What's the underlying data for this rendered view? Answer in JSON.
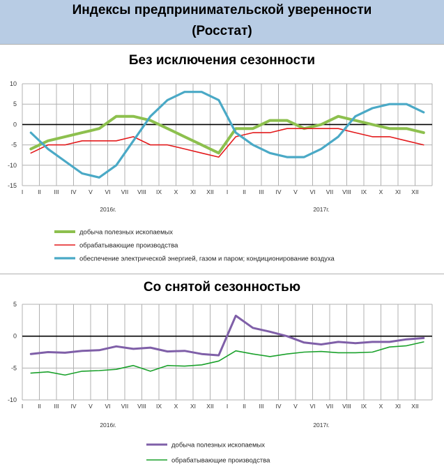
{
  "header": {
    "title_line1": "Индексы предпринимательской уверенности",
    "title_line2": "(Росстат)"
  },
  "section1": {
    "title": "Без исключения сезонности"
  },
  "section2": {
    "title": "Со снятой сезонностью"
  },
  "colors": {
    "mining": "#8dc04e",
    "manufacturing": "#e31a1c",
    "energy": "#4aa9c6",
    "mining_sa": "#7f5fa8",
    "manufacturing_sa": "#1aa12b",
    "grid": "#b0b0b0",
    "zero_line": "#000000"
  },
  "chart_data": [
    {
      "type": "line",
      "title": "Без исключения сезонности",
      "categories": [
        "I",
        "II",
        "III",
        "IV",
        "V",
        "VI",
        "VII",
        "VIII",
        "IX",
        "X",
        "XI",
        "XII",
        "I",
        "II",
        "III",
        "IV",
        "V",
        "VI",
        "VII",
        "VIII",
        "IX",
        "X",
        "XI",
        "XII"
      ],
      "year_labels": [
        "2016г.",
        "2017г."
      ],
      "ylim": [
        -15,
        10
      ],
      "yticks": [
        10,
        5,
        0,
        -5,
        -10,
        -15
      ],
      "grid": true,
      "legend_position": "bottom-left",
      "series": [
        {
          "name": "добыча полезных ископаемых",
          "color_key": "mining",
          "values": [
            -6,
            -4,
            -3,
            -2,
            -1,
            2,
            2,
            1,
            -1,
            -3,
            -5,
            -7,
            -1,
            -1,
            1,
            1,
            -1,
            0,
            2,
            1,
            0,
            -1,
            -1,
            -2
          ]
        },
        {
          "name": "обрабатывающие производства",
          "color_key": "manufacturing",
          "values": [
            -7,
            -5,
            -5,
            -4,
            -4,
            -4,
            -3,
            -5,
            -5,
            -6,
            -7,
            -8,
            -3,
            -2,
            -2,
            -1,
            -1,
            -1,
            -1,
            -2,
            -3,
            -3,
            -4,
            -5
          ]
        },
        {
          "name": "обеспечение электрической энергией, газом и паром; кондиционирование воздуха",
          "color_key": "energy",
          "values": [
            -2,
            -6,
            -9,
            -12,
            -13,
            -10,
            -4,
            2,
            6,
            8,
            8,
            6,
            -2,
            -5,
            -7,
            -8,
            -8,
            -6,
            -3,
            2,
            4,
            5,
            5,
            3
          ]
        }
      ]
    },
    {
      "type": "line",
      "title": "Со снятой сезонностью",
      "categories": [
        "I",
        "II",
        "III",
        "IV",
        "V",
        "VI",
        "VII",
        "VIII",
        "IX",
        "X",
        "XI",
        "XII",
        "I",
        "II",
        "III",
        "IV",
        "V",
        "VI",
        "VII",
        "VIII",
        "IX",
        "X",
        "XI",
        "XII"
      ],
      "year_labels": [
        "2016г.",
        "2017г."
      ],
      "ylim": [
        -10,
        5
      ],
      "yticks": [
        5,
        0,
        -5,
        -10
      ],
      "grid": true,
      "legend_position": "bottom-left",
      "series": [
        {
          "name": "добыча полезных ископаемых",
          "color_key": "mining_sa",
          "values": [
            -2.8,
            -2.5,
            -2.6,
            -2.3,
            -2.2,
            -1.6,
            -2.0,
            -1.8,
            -2.4,
            -2.3,
            -2.8,
            -3.0,
            3.2,
            1.3,
            0.7,
            0.0,
            -1.0,
            -1.3,
            -0.9,
            -1.1,
            -0.9,
            -0.9,
            -0.5,
            -0.3
          ]
        },
        {
          "name": "обрабатывающие производства",
          "color_key": "manufacturing_sa",
          "values": [
            -5.8,
            -5.6,
            -6.1,
            -5.5,
            -5.4,
            -5.2,
            -4.6,
            -5.5,
            -4.6,
            -4.7,
            -4.5,
            -3.9,
            -2.3,
            -2.8,
            -3.2,
            -2.8,
            -2.5,
            -2.4,
            -2.6,
            -2.6,
            -2.5,
            -1.7,
            -1.5,
            -0.9
          ]
        }
      ]
    }
  ]
}
